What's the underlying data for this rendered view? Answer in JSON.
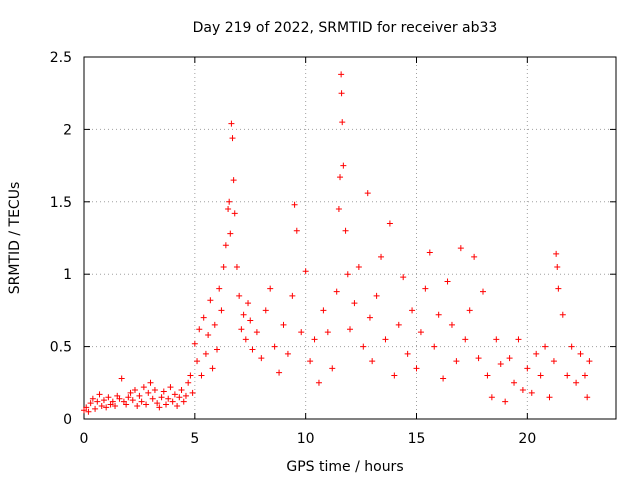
{
  "chart_data": {
    "type": "scatter",
    "title": "Day 219 of 2022, SRMTID for receiver ab33",
    "xlabel": "GPS time / hours",
    "ylabel": "SRMTID / TECUs",
    "xlim": [
      0,
      24
    ],
    "ylim": [
      0,
      2.5
    ],
    "xticks": [
      0,
      5,
      10,
      15,
      20
    ],
    "xtick_labels": [
      "0",
      "5",
      "10",
      "15",
      "20"
    ],
    "yticks": [
      0,
      0.5,
      1,
      1.5,
      2,
      2.5
    ],
    "ytick_labels": [
      "0",
      "0.5",
      "1",
      "1.5",
      "2",
      "2.5"
    ],
    "grid": true,
    "marker": "+",
    "color": "#ff0000",
    "series": [
      {
        "name": "SRMTID",
        "points": [
          [
            0.0,
            0.06
          ],
          [
            0.1,
            0.08
          ],
          [
            0.2,
            0.05
          ],
          [
            0.3,
            0.11
          ],
          [
            0.4,
            0.14
          ],
          [
            0.5,
            0.07
          ],
          [
            0.6,
            0.12
          ],
          [
            0.7,
            0.17
          ],
          [
            0.8,
            0.09
          ],
          [
            0.9,
            0.13
          ],
          [
            1.0,
            0.08
          ],
          [
            1.1,
            0.15
          ],
          [
            1.2,
            0.1
          ],
          [
            1.3,
            0.12
          ],
          [
            1.4,
            0.09
          ],
          [
            1.5,
            0.16
          ],
          [
            1.6,
            0.14
          ],
          [
            1.7,
            0.28
          ],
          [
            1.8,
            0.12
          ],
          [
            1.9,
            0.1
          ],
          [
            2.0,
            0.15
          ],
          [
            2.1,
            0.18
          ],
          [
            2.2,
            0.13
          ],
          [
            2.3,
            0.2
          ],
          [
            2.4,
            0.09
          ],
          [
            2.5,
            0.16
          ],
          [
            2.6,
            0.12
          ],
          [
            2.7,
            0.22
          ],
          [
            2.8,
            0.1
          ],
          [
            2.9,
            0.18
          ],
          [
            3.0,
            0.25
          ],
          [
            3.1,
            0.14
          ],
          [
            3.2,
            0.2
          ],
          [
            3.3,
            0.11
          ],
          [
            3.4,
            0.08
          ],
          [
            3.5,
            0.15
          ],
          [
            3.6,
            0.19
          ],
          [
            3.7,
            0.1
          ],
          [
            3.8,
            0.14
          ],
          [
            3.9,
            0.22
          ],
          [
            4.0,
            0.12
          ],
          [
            4.1,
            0.17
          ],
          [
            4.2,
            0.09
          ],
          [
            4.3,
            0.15
          ],
          [
            4.4,
            0.2
          ],
          [
            4.5,
            0.12
          ],
          [
            4.6,
            0.16
          ],
          [
            4.7,
            0.25
          ],
          [
            4.8,
            0.3
          ],
          [
            4.9,
            0.18
          ],
          [
            5.0,
            0.52
          ],
          [
            5.1,
            0.4
          ],
          [
            5.2,
            0.62
          ],
          [
            5.3,
            0.3
          ],
          [
            5.4,
            0.7
          ],
          [
            5.5,
            0.45
          ],
          [
            5.6,
            0.58
          ],
          [
            5.7,
            0.82
          ],
          [
            5.8,
            0.35
          ],
          [
            5.9,
            0.65
          ],
          [
            6.0,
            0.48
          ],
          [
            6.1,
            0.9
          ],
          [
            6.2,
            0.75
          ],
          [
            6.3,
            1.05
          ],
          [
            6.4,
            1.2
          ],
          [
            6.5,
            1.45
          ],
          [
            6.55,
            1.5
          ],
          [
            6.6,
            1.28
          ],
          [
            6.65,
            2.04
          ],
          [
            6.7,
            1.94
          ],
          [
            6.75,
            1.65
          ],
          [
            6.8,
            1.42
          ],
          [
            6.9,
            1.05
          ],
          [
            7.0,
            0.85
          ],
          [
            7.1,
            0.62
          ],
          [
            7.2,
            0.72
          ],
          [
            7.3,
            0.55
          ],
          [
            7.4,
            0.8
          ],
          [
            7.5,
            0.68
          ],
          [
            7.6,
            0.48
          ],
          [
            7.8,
            0.6
          ],
          [
            8.0,
            0.42
          ],
          [
            8.2,
            0.75
          ],
          [
            8.4,
            0.9
          ],
          [
            8.6,
            0.5
          ],
          [
            8.8,
            0.32
          ],
          [
            9.0,
            0.65
          ],
          [
            9.2,
            0.45
          ],
          [
            9.4,
            0.85
          ],
          [
            9.5,
            1.48
          ],
          [
            9.6,
            1.3
          ],
          [
            9.8,
            0.6
          ],
          [
            10.0,
            1.02
          ],
          [
            10.2,
            0.4
          ],
          [
            10.4,
            0.55
          ],
          [
            10.6,
            0.25
          ],
          [
            10.8,
            0.75
          ],
          [
            11.0,
            0.6
          ],
          [
            11.2,
            0.35
          ],
          [
            11.4,
            0.88
          ],
          [
            11.5,
            1.45
          ],
          [
            11.55,
            1.67
          ],
          [
            11.6,
            2.38
          ],
          [
            11.62,
            2.25
          ],
          [
            11.65,
            2.05
          ],
          [
            11.7,
            1.75
          ],
          [
            11.8,
            1.3
          ],
          [
            11.9,
            1.0
          ],
          [
            12.0,
            0.62
          ],
          [
            12.2,
            0.8
          ],
          [
            12.4,
            1.05
          ],
          [
            12.6,
            0.5
          ],
          [
            12.8,
            1.56
          ],
          [
            12.9,
            0.7
          ],
          [
            13.0,
            0.4
          ],
          [
            13.2,
            0.85
          ],
          [
            13.4,
            1.12
          ],
          [
            13.6,
            0.55
          ],
          [
            13.8,
            1.35
          ],
          [
            14.0,
            0.3
          ],
          [
            14.2,
            0.65
          ],
          [
            14.4,
            0.98
          ],
          [
            14.6,
            0.45
          ],
          [
            14.8,
            0.75
          ],
          [
            15.0,
            0.35
          ],
          [
            15.2,
            0.6
          ],
          [
            15.4,
            0.9
          ],
          [
            15.6,
            1.15
          ],
          [
            15.8,
            0.5
          ],
          [
            16.0,
            0.72
          ],
          [
            16.2,
            0.28
          ],
          [
            16.4,
            0.95
          ],
          [
            16.6,
            0.65
          ],
          [
            16.8,
            0.4
          ],
          [
            17.0,
            1.18
          ],
          [
            17.2,
            0.55
          ],
          [
            17.4,
            0.75
          ],
          [
            17.6,
            1.12
          ],
          [
            17.8,
            0.42
          ],
          [
            18.0,
            0.88
          ],
          [
            18.2,
            0.3
          ],
          [
            18.4,
            0.15
          ],
          [
            18.6,
            0.55
          ],
          [
            18.8,
            0.38
          ],
          [
            19.0,
            0.12
          ],
          [
            19.2,
            0.42
          ],
          [
            19.4,
            0.25
          ],
          [
            19.6,
            0.55
          ],
          [
            19.8,
            0.2
          ],
          [
            20.0,
            0.35
          ],
          [
            20.2,
            0.18
          ],
          [
            20.4,
            0.45
          ],
          [
            20.6,
            0.3
          ],
          [
            20.8,
            0.5
          ],
          [
            21.0,
            0.15
          ],
          [
            21.2,
            0.4
          ],
          [
            21.3,
            1.14
          ],
          [
            21.35,
            1.05
          ],
          [
            21.4,
            0.9
          ],
          [
            21.6,
            0.72
          ],
          [
            21.8,
            0.3
          ],
          [
            22.0,
            0.5
          ],
          [
            22.2,
            0.25
          ],
          [
            22.4,
            0.45
          ],
          [
            22.6,
            0.3
          ],
          [
            22.7,
            0.15
          ],
          [
            22.8,
            0.4
          ]
        ]
      }
    ]
  }
}
